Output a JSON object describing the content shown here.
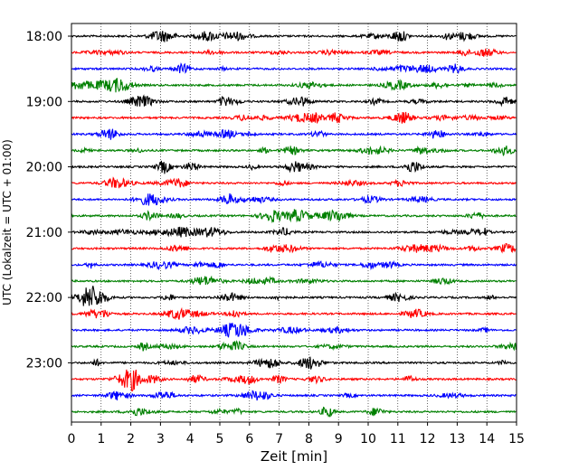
{
  "chart_data": {
    "type": "line",
    "title": "",
    "xlabel": "Zeit  [min]",
    "ylabel": "UTC (Lokalzeit = UTC + 01:00)",
    "xlim": [
      0,
      15
    ],
    "x_ticks": [
      0,
      1,
      2,
      3,
      4,
      5,
      6,
      7,
      8,
      9,
      10,
      11,
      12,
      13,
      14,
      15
    ],
    "y_tick_labels": [
      "18:00",
      "19:00",
      "20:00",
      "21:00",
      "22:00",
      "23:00"
    ],
    "start_time": "18:00",
    "trace_interval_min": 15,
    "trace_count": 24,
    "trace_colors": [
      "#000000",
      "#ff0000",
      "#0000ff",
      "#008000"
    ],
    "grid": "vertical dotted lines at each minute",
    "legend": "none"
  }
}
